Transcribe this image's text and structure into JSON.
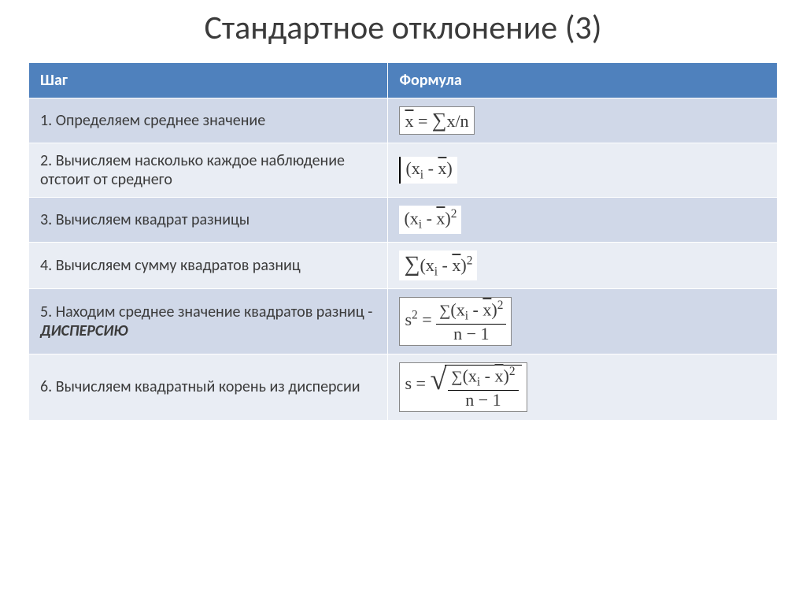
{
  "title": "Стандартное отклонение (3)",
  "table": {
    "header_bg": "#4f81bd",
    "header_fg": "#ffffff",
    "row_odd_bg": "#d0d8e8",
    "row_even_bg": "#e9edf4",
    "text_color": "#3b3b3b",
    "columns": {
      "step": "Шаг",
      "formula": "Формула"
    },
    "rows": [
      {
        "n": 1,
        "text": "1. Определяем среднее значение",
        "formula_type": "mean",
        "formula_tex": "x̄ = Σx / n"
      },
      {
        "n": 2,
        "text": "2. Вычисляем  насколько каждое наблюдение отстоит от среднего",
        "formula_type": "deviation",
        "formula_tex": "(xᵢ − x̄)"
      },
      {
        "n": 3,
        "text": "3. Вычисляем квадрат  разницы",
        "formula_type": "sq_dev",
        "formula_tex": "(xᵢ − x̄)²"
      },
      {
        "n": 4,
        "text": "4. Вычисляем сумму квадратов разниц",
        "formula_type": "sum_sq_dev",
        "formula_tex": "Σ(xᵢ − x̄)²"
      },
      {
        "n": 5,
        "text_pre": "5. Находим среднее  значение квадратов разниц - ",
        "text_emph": "ДИСПЕРСИЮ",
        "formula_type": "variance",
        "formula_tex": "s² = Σ(xᵢ − x̄)² / (n − 1)"
      },
      {
        "n": 6,
        "text": "6. Вычисляем квадратный корень из дисперсии",
        "formula_type": "stddev",
        "formula_tex": "s = √( Σ(xᵢ − x̄)² / (n − 1) )"
      }
    ]
  },
  "typography": {
    "title_fontsize": 42,
    "body_fontsize": 20,
    "formula_fontsize": 22,
    "font_family_body": "Calibri",
    "font_family_formula": "Times New Roman"
  }
}
